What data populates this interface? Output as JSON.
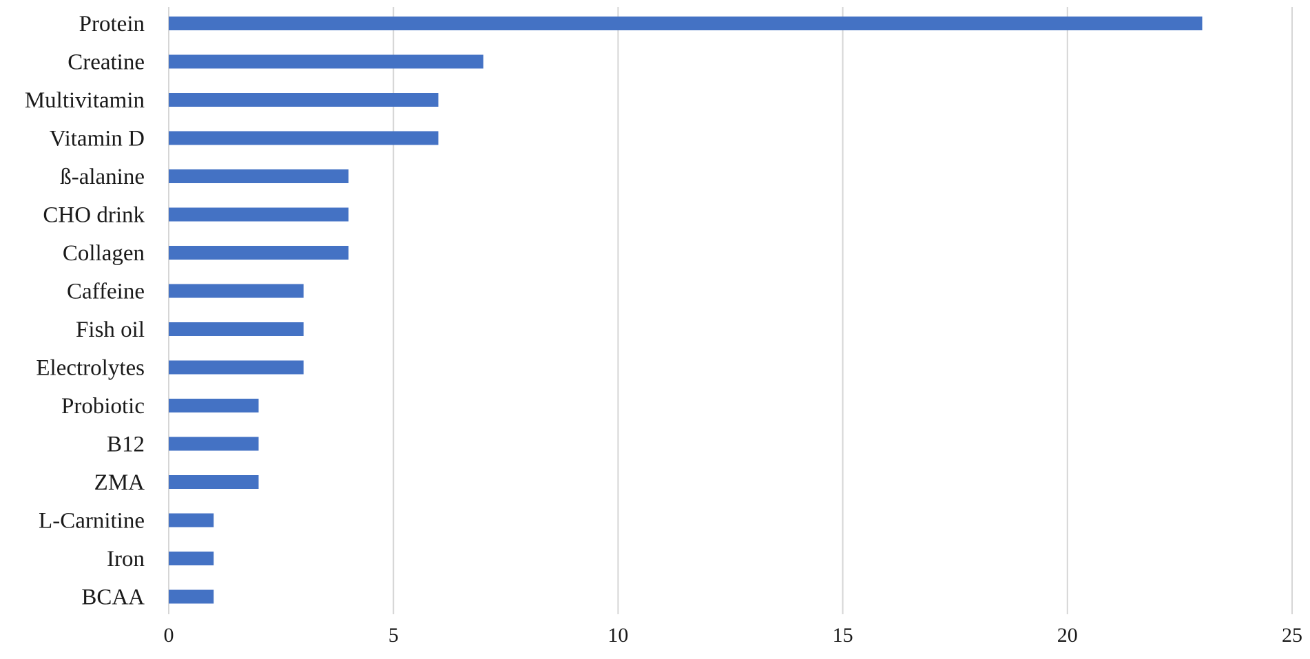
{
  "chart_data": {
    "type": "bar",
    "orientation": "horizontal",
    "categories": [
      "Protein",
      "Creatine",
      "Multivitamin",
      "Vitamin D",
      "ß-alanine",
      "CHO drink",
      "Collagen",
      "Caffeine",
      "Fish oil",
      "Electrolytes",
      "Probiotic",
      "B12",
      "ZMA",
      "L-Carnitine",
      "Iron",
      "BCAA"
    ],
    "values": [
      23,
      7,
      6,
      6,
      4,
      4,
      4,
      3,
      3,
      3,
      2,
      2,
      2,
      1,
      1,
      1
    ],
    "xlim": [
      0,
      25
    ],
    "xticks": [
      0,
      5,
      10,
      15,
      20,
      25
    ],
    "title": "",
    "xlabel": "",
    "ylabel": "",
    "grid": "vertical",
    "bar_color": "#4472c4",
    "grid_color": "#d6d6d6"
  }
}
